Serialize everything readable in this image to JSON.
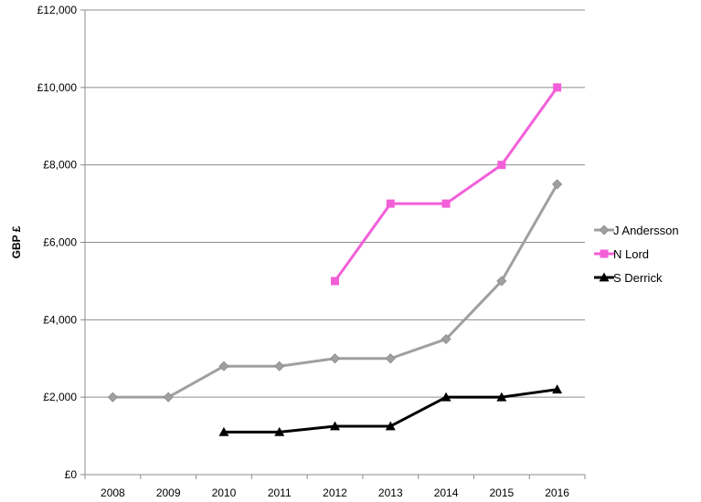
{
  "chart_data": {
    "type": "line",
    "title": "",
    "xlabel": "",
    "ylabel": "GBP £",
    "ylim": [
      0,
      12000
    ],
    "y_ticks": [
      0,
      2000,
      4000,
      6000,
      8000,
      10000,
      12000
    ],
    "y_tick_labels": [
      "£0",
      "£2,000",
      "£4,000",
      "£6,000",
      "£8,000",
      "£10,000",
      "£12,000"
    ],
    "categories": [
      "2008",
      "2009",
      "2010",
      "2011",
      "2012",
      "2013",
      "2014",
      "2015",
      "2016"
    ],
    "grid": true,
    "legend_position": "right",
    "series": [
      {
        "name": "J Andersson",
        "color": "#a0a0a0",
        "marker": "diamond",
        "values": [
          2000,
          2000,
          2800,
          2800,
          3000,
          3000,
          3500,
          5000,
          7500
        ]
      },
      {
        "name": "N Lord",
        "color": "#f35fd8",
        "marker": "square",
        "values": [
          null,
          null,
          null,
          null,
          5000,
          7000,
          7000,
          8000,
          10000
        ]
      },
      {
        "name": "S Derrick",
        "color": "#000000",
        "marker": "triangle",
        "values": [
          null,
          null,
          1100,
          1100,
          1250,
          1250,
          2000,
          2000,
          2200
        ]
      }
    ]
  }
}
